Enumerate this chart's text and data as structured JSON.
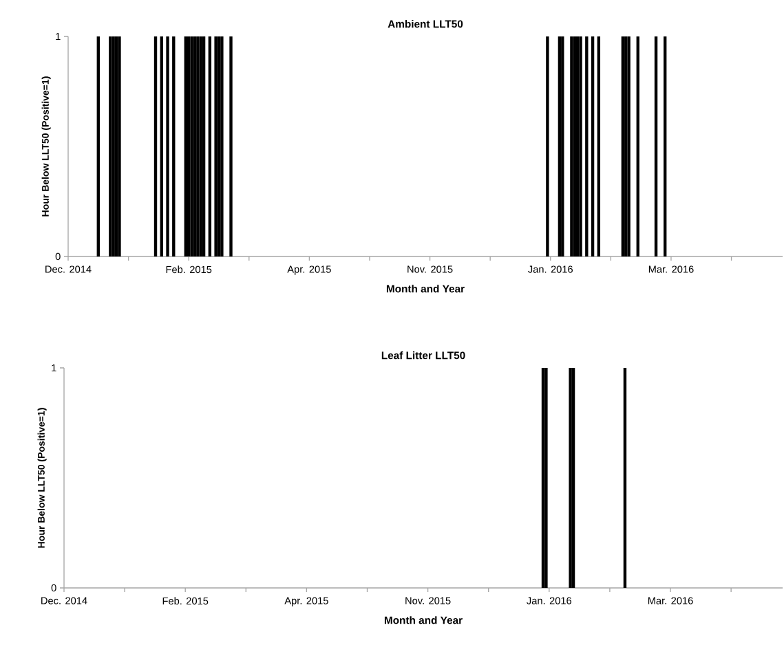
{
  "chart_data": [
    {
      "type": "bar",
      "title": "Ambient LLT50",
      "xlabel": "Month and Year",
      "ylabel": "Hour Below LLT50 (Positive=1)",
      "color": "#000000",
      "categories": [
        "Dec. 2014",
        null,
        null,
        null,
        null,
        null,
        null,
        null,
        null,
        null,
        null,
        null,
        null,
        null,
        null,
        null,
        null,
        null,
        null,
        null,
        null,
        null,
        null,
        null,
        null,
        null,
        null,
        null,
        null,
        null,
        null,
        null,
        null,
        null,
        null,
        null,
        null,
        null,
        null,
        null,
        "Feb. 2015",
        null,
        null,
        null,
        null,
        null,
        null,
        null,
        null,
        null,
        null,
        null,
        null,
        null,
        null,
        null,
        null,
        null,
        null,
        null,
        null,
        null,
        null,
        null,
        null,
        null,
        null,
        null,
        null,
        null,
        null,
        null,
        null,
        null,
        null,
        null,
        null,
        null,
        null,
        null,
        "Apr. 2015",
        null,
        null,
        null,
        null,
        null,
        null,
        null,
        null,
        null,
        null,
        null,
        null,
        null,
        null,
        null,
        null,
        null,
        null,
        null,
        null,
        null,
        null,
        null,
        null,
        null,
        null,
        null,
        null,
        null,
        null,
        null,
        null,
        null,
        null,
        null,
        null,
        null,
        null,
        null,
        "Nov. 2015",
        null,
        null,
        null,
        null,
        null,
        null,
        null,
        null,
        null,
        null,
        null,
        null,
        null,
        null,
        null,
        null,
        null,
        null,
        null,
        null,
        null,
        null,
        null,
        null,
        null,
        null,
        null,
        null,
        null,
        null,
        null,
        null,
        null,
        null,
        null,
        null,
        null,
        null,
        null,
        "Jan. 2016",
        null,
        null,
        null,
        null,
        null,
        null,
        null,
        null,
        null,
        null,
        null,
        null,
        null,
        null,
        null,
        null,
        null,
        null,
        null,
        null,
        null,
        null,
        null,
        null,
        null,
        null,
        null,
        null,
        null,
        null,
        null,
        null,
        null,
        null,
        null,
        null,
        null,
        null,
        null,
        "Mar. 2016",
        null,
        null,
        null,
        null,
        null,
        null,
        null,
        null,
        null,
        null,
        null,
        null,
        null,
        null,
        null,
        null,
        null,
        null,
        null,
        null,
        null,
        null,
        null,
        null,
        null,
        null,
        null,
        null,
        null,
        null,
        null,
        null,
        null,
        null,
        null,
        null,
        null
      ],
      "values": [
        0,
        0,
        0,
        0,
        0,
        0,
        0,
        0,
        0,
        0,
        1,
        0,
        0,
        0,
        1,
        1,
        1,
        1,
        0,
        0,
        0,
        0,
        0,
        0,
        0,
        0,
        0,
        0,
        0,
        1,
        0,
        1,
        0,
        1,
        0,
        1,
        0,
        0,
        0,
        1,
        1,
        1,
        1,
        1,
        1,
        1,
        0,
        1,
        0,
        1,
        1,
        1,
        0,
        0,
        1,
        0,
        0,
        0,
        0,
        0,
        0,
        0,
        0,
        0,
        0,
        0,
        0,
        0,
        0,
        0,
        0,
        0,
        0,
        0,
        0,
        0,
        0,
        0,
        0,
        0,
        0,
        0,
        0,
        0,
        0,
        0,
        0,
        0,
        0,
        0,
        0,
        0,
        0,
        0,
        0,
        0,
        0,
        0,
        0,
        0,
        0,
        0,
        0,
        0,
        0,
        0,
        0,
        0,
        0,
        0,
        0,
        0,
        0,
        0,
        0,
        0,
        0,
        0,
        0,
        0,
        0,
        0,
        0,
        0,
        0,
        0,
        0,
        0,
        0,
        0,
        0,
        0,
        0,
        0,
        0,
        0,
        0,
        0,
        0,
        0,
        0,
        0,
        0,
        0,
        0,
        0,
        0,
        0,
        0,
        0,
        0,
        0,
        0,
        0,
        0,
        0,
        0,
        0,
        0,
        1,
        0,
        0,
        0,
        1,
        1,
        0,
        0,
        1,
        1,
        1,
        1,
        0,
        1,
        0,
        1,
        0,
        1,
        0,
        0,
        0,
        0,
        0,
        0,
        0,
        1,
        1,
        1,
        0,
        0,
        1,
        0,
        0,
        0,
        0,
        0,
        1,
        0,
        0,
        1,
        0,
        0,
        0,
        0,
        0,
        0,
        0,
        0,
        0,
        0,
        0,
        0,
        0,
        0,
        0,
        0,
        0,
        0,
        0,
        0,
        0,
        0,
        0,
        0,
        0,
        0,
        0,
        0,
        0,
        0,
        0,
        0,
        0,
        0,
        0,
        0,
        0,
        0,
        0
      ],
      "ylim": [
        0,
        1
      ],
      "yticks": [
        0,
        1
      ]
    },
    {
      "type": "bar",
      "title": "Leaf Litter LLT50",
      "xlabel": "Month and Year",
      "ylabel": "Hour Below LLT50 (Positive=1)",
      "color": "#000000",
      "categories": [
        "Dec. 2014",
        null,
        null,
        null,
        null,
        null,
        null,
        null,
        null,
        null,
        null,
        null,
        null,
        null,
        null,
        null,
        null,
        null,
        null,
        null,
        null,
        null,
        null,
        null,
        null,
        null,
        null,
        null,
        null,
        null,
        null,
        null,
        null,
        null,
        null,
        null,
        null,
        null,
        null,
        null,
        "Feb. 2015",
        null,
        null,
        null,
        null,
        null,
        null,
        null,
        null,
        null,
        null,
        null,
        null,
        null,
        null,
        null,
        null,
        null,
        null,
        null,
        null,
        null,
        null,
        null,
        null,
        null,
        null,
        null,
        null,
        null,
        null,
        null,
        null,
        null,
        null,
        null,
        null,
        null,
        null,
        null,
        "Apr. 2015",
        null,
        null,
        null,
        null,
        null,
        null,
        null,
        null,
        null,
        null,
        null,
        null,
        null,
        null,
        null,
        null,
        null,
        null,
        null,
        null,
        null,
        null,
        null,
        null,
        null,
        null,
        null,
        null,
        null,
        null,
        null,
        null,
        null,
        null,
        null,
        null,
        null,
        null,
        null,
        "Nov. 2015",
        null,
        null,
        null,
        null,
        null,
        null,
        null,
        null,
        null,
        null,
        null,
        null,
        null,
        null,
        null,
        null,
        null,
        null,
        null,
        null,
        null,
        null,
        null,
        null,
        null,
        null,
        null,
        null,
        null,
        null,
        null,
        null,
        null,
        null,
        null,
        null,
        null,
        null,
        null,
        "Jan. 2016",
        null,
        null,
        null,
        null,
        null,
        null,
        null,
        null,
        null,
        null,
        null,
        null,
        null,
        null,
        null,
        null,
        null,
        null,
        null,
        null,
        null,
        null,
        null,
        null,
        null,
        null,
        null,
        null,
        null,
        null,
        null,
        null,
        null,
        null,
        null,
        null,
        null,
        null,
        null,
        "Mar. 2016",
        null,
        null,
        null,
        null,
        null,
        null,
        null,
        null,
        null,
        null,
        null,
        null,
        null,
        null,
        null,
        null,
        null,
        null,
        null,
        null,
        null,
        null,
        null,
        null,
        null,
        null,
        null,
        null,
        null,
        null,
        null,
        null,
        null,
        null,
        null,
        null,
        null
      ],
      "values": [
        0,
        0,
        0,
        0,
        0,
        0,
        0,
        0,
        0,
        0,
        0,
        0,
        0,
        0,
        0,
        0,
        0,
        0,
        0,
        0,
        0,
        0,
        0,
        0,
        0,
        0,
        0,
        0,
        0,
        0,
        0,
        0,
        0,
        0,
        0,
        0,
        0,
        0,
        0,
        0,
        0,
        0,
        0,
        0,
        0,
        0,
        0,
        0,
        0,
        0,
        0,
        0,
        0,
        0,
        0,
        0,
        0,
        0,
        0,
        0,
        0,
        0,
        0,
        0,
        0,
        0,
        0,
        0,
        0,
        0,
        0,
        0,
        0,
        0,
        0,
        0,
        0,
        0,
        0,
        0,
        0,
        0,
        0,
        0,
        0,
        0,
        0,
        0,
        0,
        0,
        0,
        0,
        0,
        0,
        0,
        0,
        0,
        0,
        0,
        0,
        0,
        0,
        0,
        0,
        0,
        0,
        0,
        0,
        0,
        0,
        0,
        0,
        0,
        0,
        0,
        0,
        0,
        0,
        0,
        0,
        0,
        0,
        0,
        0,
        0,
        0,
        0,
        0,
        0,
        0,
        0,
        0,
        0,
        0,
        0,
        0,
        0,
        0,
        0,
        0,
        0,
        0,
        0,
        0,
        0,
        0,
        0,
        0,
        0,
        0,
        0,
        0,
        0,
        0,
        0,
        0,
        0,
        0,
        1,
        1,
        0,
        0,
        0,
        0,
        0,
        0,
        0,
        1,
        1,
        0,
        0,
        0,
        0,
        0,
        0,
        0,
        0,
        0,
        0,
        0,
        0,
        0,
        0,
        0,
        0,
        1,
        0,
        0,
        0,
        0,
        0,
        0,
        0,
        0,
        0,
        0,
        0,
        0,
        0,
        0,
        0,
        0,
        0,
        0,
        0,
        0,
        0,
        0,
        0,
        0,
        0,
        0,
        0,
        0,
        0,
        0,
        0,
        0,
        0,
        0,
        0,
        0,
        0,
        0,
        0,
        0,
        0,
        0,
        0,
        0,
        0,
        0,
        0,
        0,
        0,
        0,
        0,
        0
      ],
      "ylim": [
        0,
        1
      ],
      "yticks": [
        0,
        1
      ]
    }
  ]
}
